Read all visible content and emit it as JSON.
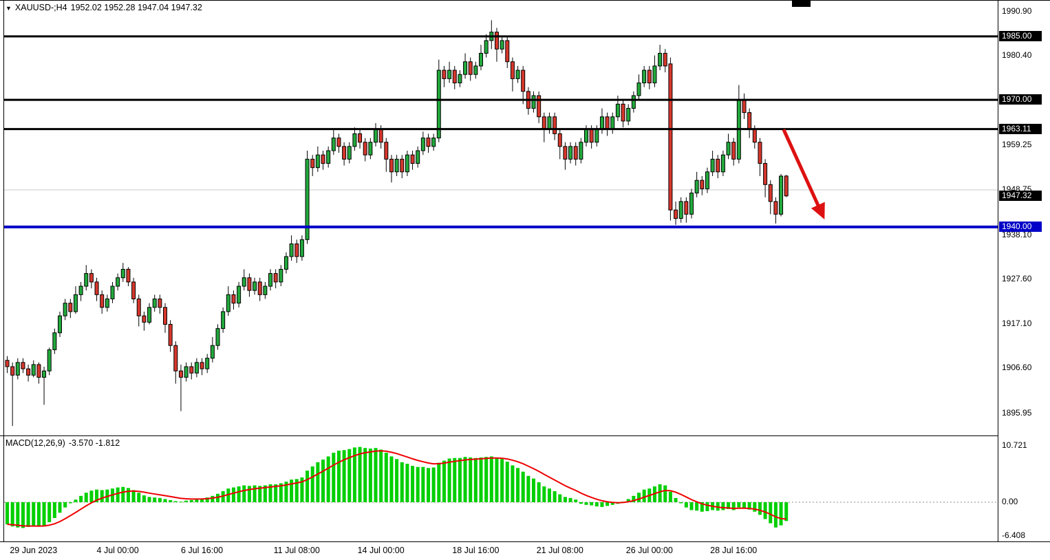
{
  "colors": {
    "background": "#ffffff",
    "bull": "#22a93c",
    "bear": "#d6372c",
    "wick": "#000000",
    "level_black": "#000000",
    "support_blue": "#0000c8",
    "grid": "#c8c8c8",
    "macd_hist": "#00cf00",
    "macd_signal": "#ee0000",
    "arrow": "#dd1111",
    "label_box_text": "#ffffff"
  },
  "icons": {
    "collapse": "▼"
  },
  "chart_data": [
    {
      "type": "candlestick",
      "title": "XAUUSD-;H4",
      "ohlc_readout": "1952.02 1952.28 1947.04 1947.32",
      "current_bar": {
        "open": 1952.02,
        "high": 1952.28,
        "low": 1947.04,
        "close": 1947.32
      },
      "y_axis_ticks": [
        "1990.90",
        "1980.40",
        "1959.25",
        "1948.75",
        "1938.10",
        "1927.60",
        "1917.10",
        "1906.60",
        "1895.95"
      ],
      "x_axis_ticks": [
        {
          "bar": 5,
          "label": "29 Jun 2023"
        },
        {
          "bar": 21,
          "label": "4 Jul 00:00"
        },
        {
          "bar": 37,
          "label": "6 Jul 16:00"
        },
        {
          "bar": 55,
          "label": "11 Jul 08:00"
        },
        {
          "bar": 71,
          "label": "14 Jul 00:00"
        },
        {
          "bar": 89,
          "label": "18 Jul 16:00"
        },
        {
          "bar": 105,
          "label": "21 Jul 08:00"
        },
        {
          "bar": 122,
          "label": "26 Jul 00:00"
        },
        {
          "bar": 138,
          "label": "28 Jul 16:00"
        }
      ],
      "levels": [
        {
          "price": 1985.0,
          "label": "1985.00",
          "color": "#000000",
          "thickness": 3
        },
        {
          "price": 1970.0,
          "label": "1970.00",
          "color": "#000000",
          "thickness": 3
        },
        {
          "price": 1963.11,
          "label": "1963.11",
          "color": "#000000",
          "thickness": 3
        },
        {
          "price": 1948.75,
          "label": "",
          "color": "#c8c8c8",
          "thickness": 1
        },
        {
          "price": 1940.0,
          "label": "1940.00",
          "color": "#0000c8",
          "thickness": 4
        }
      ],
      "current_price_label": {
        "text": "1947.32",
        "price": 1947.32
      },
      "candles": [
        [
          1908.5,
          1909.5,
          1905.5,
          1907
        ],
        [
          1907,
          1908,
          1893,
          1905
        ],
        [
          1905,
          1909,
          1904,
          1908
        ],
        [
          1908,
          1909,
          1905.5,
          1906.5
        ],
        [
          1906.5,
          1907.5,
          1903.5,
          1905
        ],
        [
          1905,
          1908.5,
          1904.5,
          1907.5
        ],
        [
          1907.5,
          1908,
          1903,
          1904.5
        ],
        [
          1904.5,
          1907,
          1898,
          1906
        ],
        [
          1906,
          1911.5,
          1905,
          1911
        ],
        [
          1911,
          1916,
          1910,
          1915
        ],
        [
          1915,
          1920,
          1914,
          1919
        ],
        [
          1919,
          1923,
          1918,
          1922
        ],
        [
          1922,
          1923,
          1918.5,
          1920
        ],
        [
          1920,
          1926,
          1919.5,
          1924
        ],
        [
          1924,
          1927,
          1922.5,
          1926
        ],
        [
          1926,
          1931,
          1925,
          1929
        ],
        [
          1929,
          1930,
          1925.5,
          1927
        ],
        [
          1927,
          1928,
          1922.5,
          1924
        ],
        [
          1924,
          1925,
          1919.5,
          1921
        ],
        [
          1921,
          1924,
          1920,
          1923
        ],
        [
          1923,
          1927,
          1922,
          1926
        ],
        [
          1926,
          1929,
          1925,
          1928
        ],
        [
          1928,
          1931.5,
          1927,
          1930
        ],
        [
          1930,
          1930.5,
          1926,
          1927
        ],
        [
          1927,
          1928,
          1922,
          1923
        ],
        [
          1923,
          1924,
          1916.5,
          1919
        ],
        [
          1919,
          1920,
          1915.5,
          1917.5
        ],
        [
          1917.5,
          1922,
          1917,
          1921
        ],
        [
          1921,
          1924,
          1920,
          1923
        ],
        [
          1923,
          1924,
          1919.5,
          1921
        ],
        [
          1921,
          1922,
          1915,
          1917
        ],
        [
          1917,
          1918,
          1910.5,
          1912
        ],
        [
          1912,
          1913,
          1903,
          1906
        ],
        [
          1906,
          1907.5,
          1896.5,
          1904.5
        ],
        [
          1904.5,
          1908,
          1903.5,
          1907
        ],
        [
          1907,
          1908,
          1904,
          1905.5
        ],
        [
          1905.5,
          1909,
          1904.5,
          1908
        ],
        [
          1908,
          1909,
          1905,
          1906.5
        ],
        [
          1906.5,
          1910,
          1905.5,
          1909
        ],
        [
          1909,
          1914,
          1908,
          1912
        ],
        [
          1912,
          1917,
          1911,
          1916
        ],
        [
          1916,
          1921,
          1915,
          1920
        ],
        [
          1920,
          1926,
          1919,
          1924
        ],
        [
          1924,
          1925,
          1920.5,
          1922
        ],
        [
          1922,
          1927,
          1921,
          1926
        ],
        [
          1926,
          1930,
          1925,
          1928
        ],
        [
          1928,
          1929,
          1923.5,
          1925
        ],
        [
          1925,
          1928,
          1924,
          1927
        ],
        [
          1927,
          1928,
          1922.5,
          1924
        ],
        [
          1924,
          1927,
          1923,
          1926
        ],
        [
          1926,
          1930,
          1925,
          1929
        ],
        [
          1929,
          1930,
          1925.5,
          1927
        ],
        [
          1927,
          1931,
          1926,
          1930
        ],
        [
          1930,
          1934,
          1929,
          1933
        ],
        [
          1933,
          1938,
          1932,
          1936
        ],
        [
          1936,
          1937,
          1931.5,
          1933
        ],
        [
          1933,
          1938,
          1932,
          1937
        ],
        [
          1937,
          1958,
          1936,
          1956
        ],
        [
          1956,
          1957,
          1952,
          1954
        ],
        [
          1954,
          1959,
          1953,
          1957
        ],
        [
          1957,
          1958,
          1953.5,
          1955
        ],
        [
          1955,
          1959,
          1954,
          1958
        ],
        [
          1958,
          1963,
          1957,
          1961
        ],
        [
          1961,
          1962,
          1957.5,
          1959
        ],
        [
          1959,
          1960,
          1954.5,
          1956
        ],
        [
          1956,
          1960,
          1955,
          1959
        ],
        [
          1959,
          1963.5,
          1958,
          1962
        ],
        [
          1962,
          1963,
          1958.5,
          1960
        ],
        [
          1960,
          1961,
          1955.5,
          1957
        ],
        [
          1957,
          1961,
          1956,
          1960
        ],
        [
          1960,
          1964.5,
          1959,
          1963
        ],
        [
          1963,
          1964,
          1958.5,
          1960
        ],
        [
          1960,
          1961,
          1953,
          1956
        ],
        [
          1956,
          1957,
          1950.5,
          1953
        ],
        [
          1953,
          1957,
          1952,
          1956
        ],
        [
          1956,
          1957,
          1951.5,
          1953
        ],
        [
          1953,
          1958,
          1952,
          1957
        ],
        [
          1957,
          1958,
          1953.5,
          1955
        ],
        [
          1955,
          1959,
          1954,
          1958
        ],
        [
          1958,
          1962.5,
          1957,
          1961
        ],
        [
          1961,
          1962,
          1957.5,
          1959
        ],
        [
          1959,
          1962,
          1958,
          1961
        ],
        [
          1961,
          1979.5,
          1960,
          1977
        ],
        [
          1977,
          1978,
          1973,
          1975
        ],
        [
          1975,
          1979,
          1974,
          1977
        ],
        [
          1977,
          1978,
          1972.5,
          1974
        ],
        [
          1974,
          1977,
          1973,
          1976
        ],
        [
          1976,
          1981,
          1975,
          1979
        ],
        [
          1979,
          1980,
          1974.5,
          1976
        ],
        [
          1976,
          1979,
          1975,
          1978
        ],
        [
          1978,
          1983,
          1977,
          1981
        ],
        [
          1981,
          1985.5,
          1980,
          1984
        ],
        [
          1984,
          1988.8,
          1982,
          1986
        ],
        [
          1986,
          1987,
          1979,
          1982
        ],
        [
          1982,
          1985,
          1981,
          1984
        ],
        [
          1984,
          1985,
          1977.5,
          1979
        ],
        [
          1979,
          1980,
          1972,
          1975
        ],
        [
          1975,
          1978,
          1974,
          1977
        ],
        [
          1977,
          1978,
          1969,
          1972
        ],
        [
          1972,
          1973,
          1966.5,
          1968
        ],
        [
          1968,
          1972,
          1967,
          1971
        ],
        [
          1971,
          1972,
          1964.5,
          1966
        ],
        [
          1966,
          1967,
          1960,
          1963
        ],
        [
          1963,
          1967,
          1962,
          1966
        ],
        [
          1966,
          1967,
          1960.5,
          1962
        ],
        [
          1962,
          1963,
          1956,
          1959
        ],
        [
          1959,
          1960,
          1953.5,
          1956
        ],
        [
          1956,
          1960,
          1955,
          1959
        ],
        [
          1959,
          1960,
          1954.5,
          1956
        ],
        [
          1956,
          1961,
          1955,
          1960
        ],
        [
          1960,
          1964,
          1959,
          1963
        ],
        [
          1963,
          1964,
          1958.5,
          1960
        ],
        [
          1960,
          1964,
          1959,
          1963
        ],
        [
          1963,
          1968,
          1962,
          1966
        ],
        [
          1966,
          1967,
          1961.5,
          1963
        ],
        [
          1963,
          1967,
          1962,
          1966
        ],
        [
          1966,
          1971,
          1965,
          1969
        ],
        [
          1969,
          1970,
          1963.5,
          1965
        ],
        [
          1965,
          1969,
          1964,
          1968
        ],
        [
          1968,
          1972,
          1967,
          1971
        ],
        [
          1971,
          1976,
          1970,
          1974
        ],
        [
          1974,
          1978,
          1973,
          1977
        ],
        [
          1977,
          1978,
          1972.5,
          1974
        ],
        [
          1974,
          1980.5,
          1973,
          1978
        ],
        [
          1978,
          1983,
          1977,
          1981
        ],
        [
          1981,
          1982,
          1976.5,
          1978
        ],
        [
          1978.5,
          1980,
          1941.5,
          1944
        ],
        [
          1944,
          1946,
          1940.5,
          1942
        ],
        [
          1942,
          1947,
          1941,
          1946
        ],
        [
          1946,
          1947,
          1941,
          1943
        ],
        [
          1943,
          1949,
          1942,
          1948
        ],
        [
          1948,
          1953,
          1947,
          1951
        ],
        [
          1951,
          1952,
          1947.5,
          1949
        ],
        [
          1949,
          1954,
          1948,
          1953
        ],
        [
          1953,
          1958,
          1952,
          1956
        ],
        [
          1956,
          1957,
          1951.5,
          1953
        ],
        [
          1953,
          1958,
          1952,
          1957
        ],
        [
          1957,
          1962,
          1956,
          1960
        ],
        [
          1960,
          1961,
          1954.5,
          1956
        ],
        [
          1956,
          1973.5,
          1955,
          1970
        ],
        [
          1970,
          1971.5,
          1965.5,
          1967
        ],
        [
          1967,
          1968,
          1961,
          1963
        ],
        [
          1963,
          1964,
          1958.5,
          1960
        ],
        [
          1960,
          1961,
          1952,
          1955
        ],
        [
          1955,
          1956,
          1947,
          1950
        ],
        [
          1950,
          1951,
          1943,
          1946
        ],
        [
          1946,
          1947,
          1940.8,
          1943
        ],
        [
          1943,
          1952.5,
          1942.5,
          1952
        ],
        [
          1952.02,
          1952.28,
          1947.04,
          1947.32
        ]
      ]
    },
    {
      "type": "bar",
      "name": "MACD(12,26,9)",
      "readout": "-3.570 -1.812",
      "y_axis_ticks": [
        "10.721",
        "0.00",
        "-6.408"
      ],
      "signal_period": 9,
      "values": [
        -4.2,
        -4.6,
        -4.8,
        -4.9,
        -4.7,
        -4.5,
        -4.6,
        -4.4,
        -3.8,
        -3.0,
        -2.0,
        -1.0,
        -0.2,
        0.5,
        1.2,
        1.8,
        2.2,
        2.4,
        2.3,
        2.4,
        2.6,
        2.8,
        2.9,
        2.7,
        2.3,
        1.8,
        1.3,
        1.0,
        0.9,
        0.8,
        0.6,
        0.4,
        0.2,
        0.1,
        0.3,
        0.4,
        0.6,
        0.7,
        0.9,
        1.2,
        1.6,
        2.1,
        2.6,
        2.8,
        3.0,
        3.2,
        3.1,
        3.2,
        3.1,
        3.2,
        3.4,
        3.4,
        3.6,
        3.9,
        4.3,
        4.4,
        4.7,
        6.0,
        6.8,
        7.6,
        8.1,
        8.7,
        9.4,
        9.8,
        9.9,
        10.1,
        10.4,
        10.5,
        10.3,
        10.2,
        10.3,
        10.0,
        9.4,
        8.7,
        8.2,
        7.6,
        7.3,
        6.9,
        6.7,
        6.7,
        6.5,
        6.6,
        7.5,
        7.9,
        8.3,
        8.4,
        8.4,
        8.6,
        8.5,
        8.4,
        8.5,
        8.6,
        8.7,
        8.4,
        8.2,
        7.7,
        7.0,
        6.5,
        5.8,
        5.0,
        4.5,
        3.8,
        3.0,
        2.6,
        2.1,
        1.5,
        1.0,
        0.8,
        0.5,
        -0.3,
        -0.5,
        -0.6,
        -0.8,
        -0.9,
        -0.7,
        -0.5,
        -0.3,
        0.1,
        0.6,
        1.2,
        1.8,
        2.4,
        2.6,
        3.0,
        3.4,
        3.2,
        2.0,
        0.8,
        -0.2,
        -1.0,
        -1.5,
        -1.6,
        -1.8,
        -1.7,
        -1.5,
        -1.6,
        -1.5,
        -1.3,
        -1.5,
        -1.0,
        -1.1,
        -1.4,
        -1.8,
        -2.4,
        -3.2,
        -4.0,
        -4.8,
        -4.4,
        -3.57
      ]
    }
  ],
  "annotations": {
    "trend_arrow": {
      "from_bar": 147.5,
      "from_price": 1963.0,
      "to_bar": 155.0,
      "to_price": 1942.5,
      "color": "#dd1111",
      "width": 5
    }
  }
}
